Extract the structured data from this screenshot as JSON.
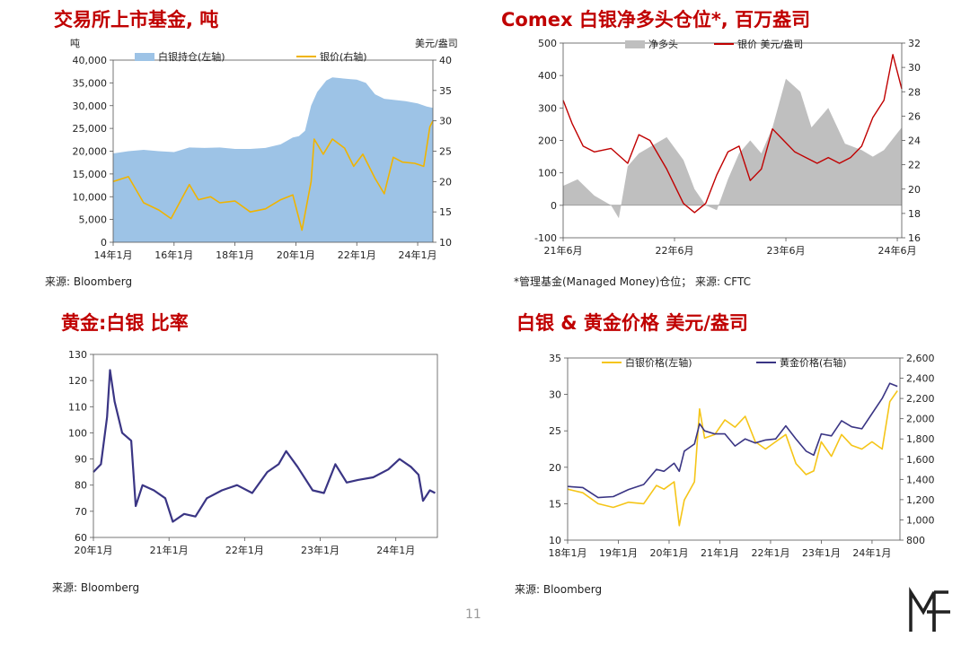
{
  "page_number": "11",
  "logo_text": "MF",
  "colors": {
    "title_red": "#c00000",
    "silver_fill": "#9dc3e6",
    "gold_line": "#f0b400",
    "net_long_gray": "#bfbfbf",
    "price_red": "#c00000",
    "ratio_navy": "#3a3584",
    "gold_price_navy": "#3a3584",
    "silver_price_yellow": "#f5c518"
  },
  "charts": [
    {
      "title": "交易所上市基金, 吨",
      "source": "来源: Bloomberg",
      "left_unit": "吨",
      "right_unit": "美元/盎司",
      "legend": [
        "白银持仓(左轴)",
        "银价(右轴)"
      ],
      "x_ticks": [
        "14年1月",
        "16年1月",
        "18年1月",
        "20年1月",
        "22年1月",
        "24年1月"
      ],
      "y_left_ticks": [
        "0",
        "5,000",
        "10,000",
        "15,000",
        "20,000",
        "25,000",
        "30,000",
        "35,000",
        "40,000"
      ],
      "y_right_ticks": [
        "10",
        "15",
        "20",
        "25",
        "30",
        "35",
        "40"
      ]
    },
    {
      "title": "Comex 白银净多头仓位*, 百万盎司",
      "source": "*管理基金(Managed Money)仓位； 来源: CFTC",
      "legend": [
        "净多头",
        "银价 美元/盎司"
      ],
      "x_ticks": [
        "21年6月",
        "22年6月",
        "23年6月",
        "24年6月"
      ],
      "y_left_ticks": [
        "-100",
        "0",
        "100",
        "200",
        "300",
        "400",
        "500"
      ],
      "y_right_ticks": [
        "16",
        "18",
        "20",
        "22",
        "24",
        "26",
        "28",
        "30",
        "32"
      ]
    },
    {
      "title": "黄金:白银 比率",
      "source": "来源: Bloomberg",
      "x_ticks": [
        "20年1月",
        "21年1月",
        "22年1月",
        "23年1月",
        "24年1月"
      ],
      "y_left_ticks": [
        "60",
        "70",
        "80",
        "90",
        "100",
        "110",
        "120",
        "130"
      ]
    },
    {
      "title": "白银 & 黄金价格 美元/盎司",
      "source": "来源: Bloomberg",
      "legend": [
        "白银价格(左轴)",
        "黄金价格(右轴)"
      ],
      "x_ticks": [
        "18年1月",
        "19年1月",
        "20年1月",
        "21年1月",
        "22年1月",
        "23年1月",
        "24年1月"
      ],
      "y_left_ticks": [
        "10",
        "15",
        "20",
        "25",
        "30",
        "35"
      ],
      "y_right_ticks": [
        "800",
        "1,000",
        "1,200",
        "1,400",
        "1,600",
        "1,800",
        "2,000",
        "2,200",
        "2,400",
        "2,600"
      ]
    }
  ],
  "chart_data": [
    {
      "type": "area",
      "title": "交易所上市基金, 吨",
      "x_range": [
        2014.0,
        2024.5
      ],
      "ylim_left": [
        0,
        40000
      ],
      "ylim_right": [
        10,
        40
      ],
      "series": [
        {
          "name": "白银持仓(左轴)",
          "axis": "left",
          "type": "area",
          "x": [
            2014.0,
            2014.5,
            2015.0,
            2015.5,
            2016.0,
            2016.5,
            2017.0,
            2017.5,
            2018.0,
            2018.5,
            2019.0,
            2019.5,
            2019.9,
            2020.1,
            2020.3,
            2020.5,
            2020.7,
            2021.0,
            2021.2,
            2021.5,
            2021.8,
            2022.0,
            2022.3,
            2022.6,
            2022.9,
            2023.2,
            2023.6,
            2024.0,
            2024.3,
            2024.5
          ],
          "y": [
            19500,
            20000,
            20300,
            20000,
            19800,
            20800,
            20700,
            20800,
            20500,
            20500,
            20700,
            21500,
            23000,
            23300,
            24500,
            30000,
            33000,
            35500,
            36200,
            36000,
            35800,
            35700,
            35000,
            32500,
            31500,
            31300,
            31000,
            30500,
            29800,
            29500
          ]
        },
        {
          "name": "银价(右轴)",
          "axis": "right",
          "type": "line",
          "x": [
            2014.0,
            2014.5,
            2015.0,
            2015.5,
            2015.9,
            2016.5,
            2016.8,
            2017.2,
            2017.5,
            2018.0,
            2018.5,
            2019.0,
            2019.5,
            2019.9,
            2020.2,
            2020.5,
            2020.6,
            2020.9,
            2021.2,
            2021.6,
            2021.9,
            2022.2,
            2022.6,
            2022.9,
            2023.2,
            2023.5,
            2023.9,
            2024.2,
            2024.4,
            2024.5
          ],
          "y": [
            20.0,
            20.8,
            16.5,
            15.3,
            13.9,
            19.5,
            17.0,
            17.5,
            16.5,
            16.8,
            15.0,
            15.5,
            17.0,
            17.8,
            12.0,
            20.0,
            27.0,
            24.5,
            27.0,
            25.5,
            22.5,
            24.5,
            20.5,
            18.0,
            24.0,
            23.2,
            23.0,
            22.5,
            29.0,
            30.0
          ]
        }
      ]
    },
    {
      "type": "area",
      "title": "Comex 白银净多头仓位*, 百万盎司",
      "x_range": [
        2021.42,
        2024.46
      ],
      "ylim_left": [
        -100,
        500
      ],
      "ylim_right": [
        16,
        33
      ],
      "series": [
        {
          "name": "净多头",
          "axis": "left",
          "type": "area",
          "x": [
            2021.42,
            2021.55,
            2021.7,
            2021.85,
            2021.92,
            2022.0,
            2022.1,
            2022.2,
            2022.35,
            2022.5,
            2022.6,
            2022.7,
            2022.8,
            2022.9,
            2023.0,
            2023.1,
            2023.2,
            2023.3,
            2023.42,
            2023.55,
            2023.65,
            2023.8,
            2023.95,
            2024.1,
            2024.2,
            2024.3,
            2024.46
          ],
          "y": [
            60,
            80,
            30,
            0,
            -40,
            120,
            160,
            180,
            210,
            140,
            50,
            0,
            -15,
            80,
            160,
            200,
            160,
            240,
            390,
            350,
            240,
            300,
            190,
            170,
            150,
            170,
            240
          ]
        },
        {
          "name": "银价 美元/盎司",
          "axis": "right",
          "type": "line",
          "x": [
            2021.42,
            2021.5,
            2021.6,
            2021.7,
            2021.85,
            2022.0,
            2022.1,
            2022.2,
            2022.35,
            2022.5,
            2022.6,
            2022.7,
            2022.8,
            2022.9,
            2023.0,
            2023.1,
            2023.2,
            2023.3,
            2023.4,
            2023.5,
            2023.6,
            2023.7,
            2023.8,
            2023.9,
            2024.0,
            2024.1,
            2024.2,
            2024.3,
            2024.38,
            2024.46
          ],
          "y": [
            28.0,
            26.0,
            24.0,
            23.5,
            23.8,
            22.5,
            25.0,
            24.5,
            22.0,
            19.0,
            18.2,
            19.0,
            21.5,
            23.5,
            24.0,
            21.0,
            22.0,
            25.5,
            24.5,
            23.5,
            23.0,
            22.5,
            23.0,
            22.5,
            23.0,
            24.0,
            26.5,
            28.0,
            32.0,
            29.0
          ]
        }
      ]
    },
    {
      "type": "line",
      "title": "黄金:白银 比率",
      "x_range": [
        2020.0,
        2024.55
      ],
      "ylim": [
        60,
        130
      ],
      "series": [
        {
          "name": "",
          "x": [
            2020.0,
            2020.1,
            2020.18,
            2020.22,
            2020.28,
            2020.38,
            2020.5,
            2020.56,
            2020.65,
            2020.8,
            2020.95,
            2021.05,
            2021.2,
            2021.35,
            2021.5,
            2021.7,
            2021.9,
            2022.1,
            2022.3,
            2022.45,
            2022.55,
            2022.7,
            2022.9,
            2023.05,
            2023.2,
            2023.35,
            2023.5,
            2023.7,
            2023.9,
            2024.05,
            2024.2,
            2024.3,
            2024.36,
            2024.45,
            2024.52
          ],
          "y": [
            85,
            88,
            106,
            124,
            112,
            100,
            97,
            72,
            80,
            78,
            75,
            66,
            69,
            68,
            75,
            78,
            80,
            77,
            85,
            88,
            93,
            87,
            78,
            77,
            88,
            81,
            82,
            83,
            86,
            90,
            87,
            84,
            74,
            78,
            77
          ]
        }
      ]
    },
    {
      "type": "line",
      "title": "白银 & 黄金价格 美元/盎司",
      "x_range": [
        2018.0,
        2024.55
      ],
      "ylim_left": [
        10,
        35
      ],
      "ylim_right": [
        800,
        2600
      ],
      "series": [
        {
          "name": "白银价格(左轴)",
          "axis": "left",
          "x": [
            2018.0,
            2018.3,
            2018.6,
            2018.9,
            2019.2,
            2019.5,
            2019.75,
            2019.9,
            2020.1,
            2020.2,
            2020.3,
            2020.5,
            2020.6,
            2020.7,
            2020.9,
            2021.1,
            2021.3,
            2021.5,
            2021.7,
            2021.9,
            2022.1,
            2022.3,
            2022.5,
            2022.7,
            2022.85,
            2023.0,
            2023.2,
            2023.4,
            2023.6,
            2023.8,
            2024.0,
            2024.2,
            2024.35,
            2024.5
          ],
          "y": [
            17.0,
            16.5,
            15.0,
            14.5,
            15.2,
            15.0,
            17.5,
            17.0,
            18.0,
            12.0,
            15.5,
            18.0,
            28.0,
            24.0,
            24.5,
            26.5,
            25.5,
            27.0,
            23.5,
            22.5,
            23.5,
            24.5,
            20.5,
            19.0,
            19.5,
            23.5,
            21.5,
            24.5,
            23.0,
            22.5,
            23.5,
            22.5,
            29.0,
            30.5
          ]
        },
        {
          "name": "黄金价格(右轴)",
          "axis": "right",
          "x": [
            2018.0,
            2018.3,
            2018.6,
            2018.9,
            2019.2,
            2019.5,
            2019.75,
            2019.9,
            2020.1,
            2020.2,
            2020.3,
            2020.5,
            2020.6,
            2020.7,
            2020.9,
            2021.1,
            2021.3,
            2021.5,
            2021.7,
            2021.9,
            2022.1,
            2022.3,
            2022.5,
            2022.7,
            2022.85,
            2023.0,
            2023.2,
            2023.4,
            2023.6,
            2023.8,
            2024.0,
            2024.2,
            2024.35,
            2024.5
          ],
          "y": [
            1330,
            1320,
            1220,
            1230,
            1300,
            1350,
            1500,
            1480,
            1560,
            1480,
            1680,
            1750,
            1950,
            1880,
            1850,
            1850,
            1730,
            1800,
            1760,
            1790,
            1800,
            1930,
            1800,
            1680,
            1640,
            1850,
            1830,
            1980,
            1920,
            1900,
            2050,
            2200,
            2350,
            2320
          ]
        }
      ]
    }
  ]
}
